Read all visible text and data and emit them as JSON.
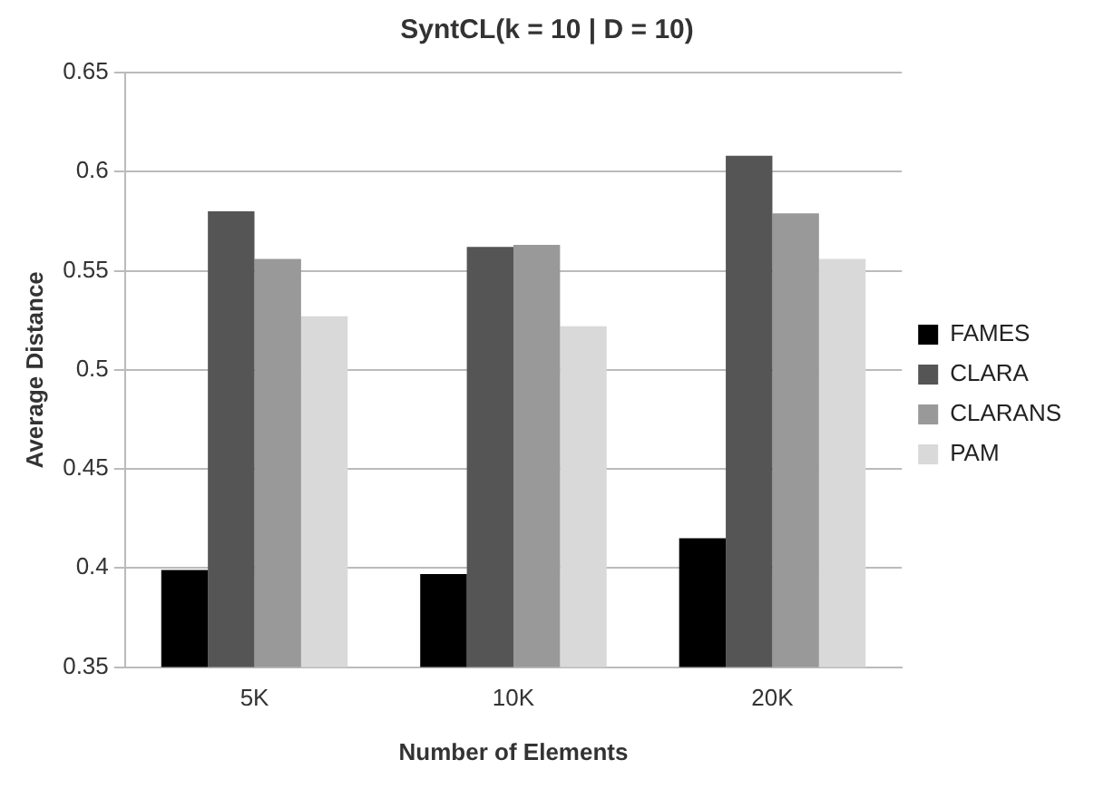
{
  "chart_data": {
    "type": "bar",
    "title": "SyntCL(k = 10 | D = 10)",
    "xlabel": "Number of Elements",
    "ylabel": "Average Distance",
    "categories": [
      "5K",
      "10K",
      "20K"
    ],
    "series": [
      {
        "name": "FAMES",
        "color": "#000000",
        "values": [
          0.399,
          0.397,
          0.415
        ]
      },
      {
        "name": "CLARA",
        "color": "#555555",
        "values": [
          0.58,
          0.562,
          0.608
        ]
      },
      {
        "name": "CLARANS",
        "color": "#999999",
        "values": [
          0.556,
          0.563,
          0.579
        ]
      },
      {
        "name": "PAM",
        "color": "#d9d9d9",
        "values": [
          0.527,
          0.522,
          0.556
        ]
      }
    ],
    "ylim": [
      0.35,
      0.65
    ],
    "yticks": [
      0.35,
      0.4,
      0.45,
      0.5,
      0.55,
      0.6,
      0.65
    ],
    "grid": "y",
    "legend": "right"
  }
}
